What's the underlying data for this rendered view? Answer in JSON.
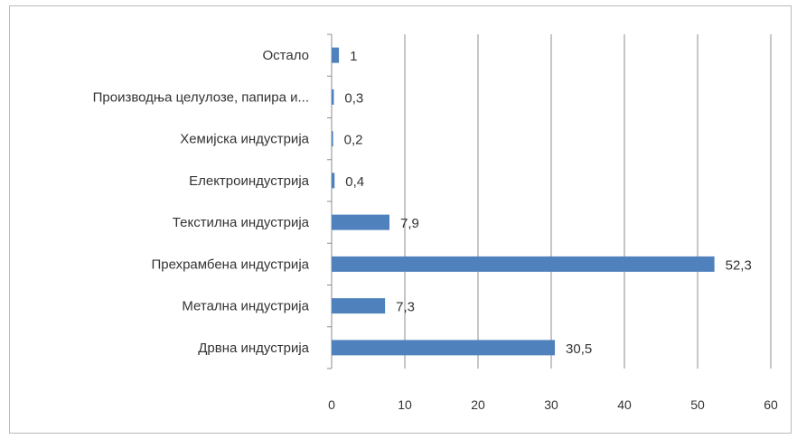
{
  "chart_data": {
    "type": "bar",
    "orientation": "horizontal",
    "categories": [
      "Остало",
      "Производња целулозе, папира и...",
      "Хемијска индустрија",
      "Електроиндустрија",
      "Текстилна индустрија",
      "Прехрамбена индустрија",
      "Метална индустрија",
      "Дрвна индустрија"
    ],
    "values": [
      1,
      0.3,
      0.2,
      0.4,
      7.9,
      52.3,
      7.3,
      30.5
    ],
    "value_labels": [
      "1",
      "0,3",
      "0,2",
      "0,4",
      "7,9",
      "52,3",
      "7,3",
      "30,5"
    ],
    "xlim": [
      0,
      60
    ],
    "xticks": [
      0,
      10,
      20,
      30,
      40,
      50,
      60
    ],
    "grid": true,
    "bar_color": "#4f81bd",
    "title": "",
    "xlabel": "",
    "ylabel": ""
  }
}
